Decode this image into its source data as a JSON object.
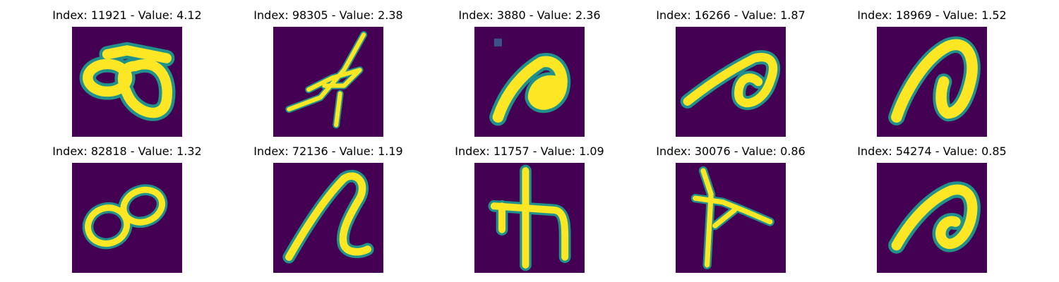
{
  "colors": {
    "background": "#440154",
    "stroke": "#fde725",
    "edge": "#21918c",
    "edge_alt": "#35b779",
    "title": "#000000",
    "page": "#ffffff"
  },
  "panels": [
    {
      "title": "Index: 11921 - Value: 4.12",
      "glyph": "double-loop"
    },
    {
      "title": "Index: 98305 - Value: 2.38",
      "glyph": "scribble"
    },
    {
      "title": "Index: 3880 - Value: 2.36",
      "glyph": "hook"
    },
    {
      "title": "Index: 16266 - Value: 1.87",
      "glyph": "hook-loop"
    },
    {
      "title": "Index: 18969 - Value: 1.52",
      "glyph": "arch"
    },
    {
      "title": "Index: 82818 - Value: 1.32",
      "glyph": "infinity"
    },
    {
      "title": "Index: 72136 - Value: 1.19",
      "glyph": "wave"
    },
    {
      "title": "Index: 11757 - Value: 1.09",
      "glyph": "cross-hook"
    },
    {
      "title": "Index: 30076 - Value: 0.86",
      "glyph": "cross"
    },
    {
      "title": "Index: 54274 - Value: 0.85",
      "glyph": "hook-loop-2"
    }
  ]
}
